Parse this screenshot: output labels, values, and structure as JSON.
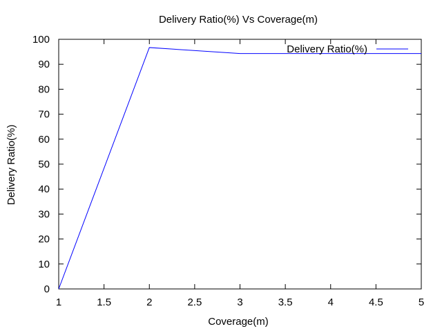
{
  "chart_data": {
    "type": "line",
    "title": "Delivery Ratio(%) Vs Coverage(m)",
    "xlabel": "Coverage(m)",
    "ylabel": "Delivery Ratio(%)",
    "xlim": [
      1,
      5
    ],
    "ylim": [
      0,
      100
    ],
    "xticks": [
      "1",
      "1.5",
      "2",
      "2.5",
      "3",
      "3.5",
      "4",
      "4.5",
      "5"
    ],
    "yticks": [
      "0",
      "10",
      "20",
      "30",
      "40",
      "50",
      "60",
      "70",
      "80",
      "90",
      "100"
    ],
    "grid": false,
    "legend_position": "top-right",
    "series": [
      {
        "name": "Delivery Ratio(%)",
        "color": "#0000ff",
        "x": [
          1,
          2,
          3,
          4,
          5
        ],
        "y": [
          0,
          96.7,
          94.3,
          94.3,
          94.3
        ]
      }
    ]
  }
}
